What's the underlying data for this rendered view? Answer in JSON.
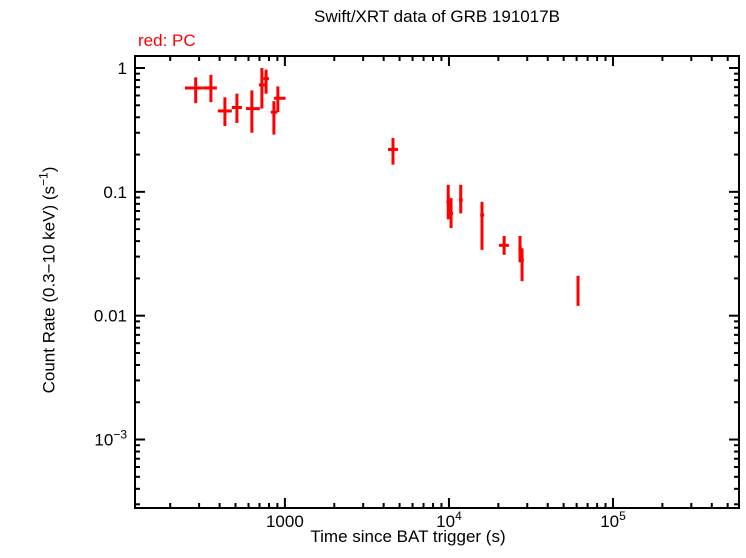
{
  "title": "Swift/XRT data of GRB 191017B",
  "mode_label": "red: PC",
  "mode_color": "#ff0000",
  "axes": {
    "xlabel": "Time since BAT trigger (s)",
    "ylabel_pre": "Count Rate (0.3−10 keV) (s",
    "ylabel_sup": "−1",
    "ylabel_post": ")"
  },
  "chart_data": {
    "type": "scatter",
    "title": "Swift/XRT data of GRB 191017B",
    "xlabel": "Time since BAT trigger (s)",
    "ylabel": "Count Rate (0.3-10 keV) (s^-1)",
    "xscale": "log",
    "yscale": "log",
    "xlim": [
      122,
      586000
    ],
    "ylim": [
      0.00028,
      1.25
    ],
    "grid": false,
    "frame_color": "#000000",
    "x_major_ticks": [
      {
        "value": 1000,
        "text": "1000"
      },
      {
        "value": 10000,
        "text": "10",
        "sup": "4"
      },
      {
        "value": 100000,
        "text": "10",
        "sup": "5"
      }
    ],
    "y_major_ticks": [
      {
        "value": 1,
        "text": "1"
      },
      {
        "value": 0.1,
        "text": "0.1"
      },
      {
        "value": 0.01,
        "text": "0.01"
      },
      {
        "value": 0.001,
        "text": "10",
        "sup": "−3"
      }
    ],
    "series": [
      {
        "name": "PC",
        "color": "#ff0000",
        "marker": "cross-with-error-bars",
        "points": [
          {
            "t": 286,
            "t_lo": 246,
            "t_hi": 316,
            "rate": 0.69,
            "rate_lo": 0.52,
            "rate_hi": 0.84
          },
          {
            "t": 354,
            "t_lo": 316,
            "t_hi": 385,
            "rate": 0.69,
            "rate_lo": 0.53,
            "rate_hi": 0.88
          },
          {
            "t": 431,
            "t_lo": 390,
            "t_hi": 475,
            "rate": 0.45,
            "rate_lo": 0.34,
            "rate_hi": 0.58
          },
          {
            "t": 510,
            "t_lo": 475,
            "t_hi": 547,
            "rate": 0.48,
            "rate_lo": 0.36,
            "rate_hi": 0.62
          },
          {
            "t": 629,
            "t_lo": 578,
            "t_hi": 704,
            "rate": 0.47,
            "rate_lo": 0.3,
            "rate_hi": 0.66
          },
          {
            "t": 724,
            "t_lo": 695,
            "t_hi": 755,
            "rate": 0.73,
            "rate_lo": 0.47,
            "rate_hi": 1.0
          },
          {
            "t": 768,
            "t_lo": 740,
            "t_hi": 800,
            "rate": 0.82,
            "rate_lo": 0.62,
            "rate_hi": 0.97
          },
          {
            "t": 857,
            "t_lo": 820,
            "t_hi": 900,
            "rate": 0.44,
            "rate_lo": 0.29,
            "rate_hi": 0.54
          },
          {
            "t": 906,
            "t_lo": 858,
            "t_hi": 1010,
            "rate": 0.57,
            "rate_lo": 0.44,
            "rate_hi": 0.71
          },
          {
            "t": 4560,
            "t_lo": 4250,
            "t_hi": 4890,
            "rate": 0.22,
            "rate_lo": 0.166,
            "rate_hi": 0.272
          },
          {
            "t": 9900,
            "t_lo": 9650,
            "t_hi": 10150,
            "rate": 0.083,
            "rate_lo": 0.06,
            "rate_hi": 0.114
          },
          {
            "t": 10300,
            "t_lo": 10100,
            "t_hi": 10600,
            "rate": 0.067,
            "rate_lo": 0.051,
            "rate_hi": 0.089
          },
          {
            "t": 11800,
            "t_lo": 11500,
            "t_hi": 12150,
            "rate": 0.086,
            "rate_lo": 0.067,
            "rate_hi": 0.114
          },
          {
            "t": 15900,
            "t_lo": 15500,
            "t_hi": 16400,
            "rate": 0.065,
            "rate_lo": 0.034,
            "rate_hi": 0.083
          },
          {
            "t": 21700,
            "t_lo": 20200,
            "t_hi": 23200,
            "rate": 0.037,
            "rate_lo": 0.031,
            "rate_hi": 0.044
          },
          {
            "t": 27100,
            "t_lo": 26500,
            "t_hi": 27800,
            "rate": 0.035,
            "rate_lo": 0.027,
            "rate_hi": 0.044
          },
          {
            "t": 27900,
            "t_lo": 27300,
            "t_hi": 28600,
            "rate": 0.028,
            "rate_lo": 0.019,
            "rate_hi": 0.035
          },
          {
            "t": 61200,
            "t_lo": 60300,
            "t_hi": 62100,
            "rate": 0.017,
            "rate_lo": 0.012,
            "rate_hi": 0.021
          }
        ]
      }
    ]
  }
}
